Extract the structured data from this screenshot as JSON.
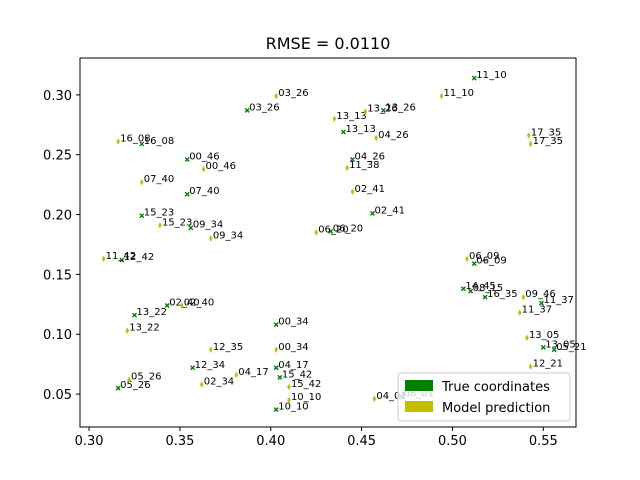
{
  "chart_data": {
    "type": "scatter",
    "title": "RMSE = 0.0110",
    "xlabel": "",
    "ylabel": "",
    "xlim": [
      0.295,
      0.568
    ],
    "ylim": [
      0.0225,
      0.3308
    ],
    "xticks": [
      0.3,
      0.35,
      0.4,
      0.45,
      0.5,
      0.55
    ],
    "xtick_labels": [
      "0.30",
      "0.35",
      "0.40",
      "0.45",
      "0.50",
      "0.55"
    ],
    "yticks": [
      0.05,
      0.1,
      0.15,
      0.2,
      0.25,
      0.3
    ],
    "ytick_labels": [
      "0.05",
      "0.10",
      "0.15",
      "0.20",
      "0.25",
      "0.30"
    ],
    "grid": false,
    "legend_position": "bottom-right",
    "series": [
      {
        "name": "True coordinates",
        "color": "#008000",
        "marker": "x",
        "points": [
          {
            "label": "11_10",
            "x": 0.512,
            "y": 0.314
          },
          {
            "label": "03_26",
            "x": 0.387,
            "y": 0.287
          },
          {
            "label": "13_26",
            "x": 0.462,
            "y": 0.287
          },
          {
            "label": "13_13",
            "x": 0.44,
            "y": 0.269
          },
          {
            "label": "16_08",
            "x": 0.329,
            "y": 0.259
          },
          {
            "label": "00_46",
            "x": 0.354,
            "y": 0.246
          },
          {
            "label": "04_26",
            "x": 0.445,
            "y": 0.246
          },
          {
            "label": "07_40",
            "x": 0.354,
            "y": 0.217
          },
          {
            "label": "02_41",
            "x": 0.456,
            "y": 0.201
          },
          {
            "label": "15_23",
            "x": 0.329,
            "y": 0.199
          },
          {
            "label": "09_34",
            "x": 0.356,
            "y": 0.189
          },
          {
            "label": "06_20",
            "x": 0.433,
            "y": 0.186
          },
          {
            "label": "12_42",
            "x": 0.318,
            "y": 0.162
          },
          {
            "label": "06_09",
            "x": 0.512,
            "y": 0.159
          },
          {
            "label": "16_35",
            "x": 0.518,
            "y": 0.131
          },
          {
            "label": "11_37",
            "x": 0.549,
            "y": 0.126
          },
          {
            "label": "02_40",
            "x": 0.343,
            "y": 0.124
          },
          {
            "label": "13_22",
            "x": 0.325,
            "y": 0.116
          },
          {
            "label": "00_34",
            "x": 0.403,
            "y": 0.108
          },
          {
            "label": "13_05",
            "x": 0.55,
            "y": 0.089
          },
          {
            "label": "05_21",
            "x": 0.556,
            "y": 0.087
          },
          {
            "label": "12_34",
            "x": 0.357,
            "y": 0.072
          },
          {
            "label": "04_17",
            "x": 0.403,
            "y": 0.072
          },
          {
            "label": "15_42",
            "x": 0.405,
            "y": 0.064
          },
          {
            "label": "05_26",
            "x": 0.316,
            "y": 0.055
          },
          {
            "label": "08_01",
            "x": 0.472,
            "y": 0.048
          },
          {
            "label": "10_10",
            "x": 0.403,
            "y": 0.037
          },
          {
            "label": "14_45",
            "x": 0.506,
            "y": 0.138
          },
          {
            "label": "08_15",
            "x": 0.51,
            "y": 0.136
          }
        ]
      },
      {
        "name": "Model prediction",
        "color": "#bfbf00",
        "marker": "diamond",
        "points": [
          {
            "label": "11_10",
            "x": 0.494,
            "y": 0.299
          },
          {
            "label": "03_26",
            "x": 0.403,
            "y": 0.299
          },
          {
            "label": "13_13",
            "x": 0.435,
            "y": 0.28
          },
          {
            "label": "13_26",
            "x": 0.452,
            "y": 0.286
          },
          {
            "label": "04_26",
            "x": 0.458,
            "y": 0.264
          },
          {
            "label": "17_35",
            "x": 0.542,
            "y": 0.266
          },
          {
            "label": "17_35",
            "x": 0.543,
            "y": 0.259
          },
          {
            "label": "16_08",
            "x": 0.316,
            "y": 0.261
          },
          {
            "label": "00_46",
            "x": 0.363,
            "y": 0.238
          },
          {
            "label": "11_38",
            "x": 0.442,
            "y": 0.239
          },
          {
            "label": "07_40",
            "x": 0.329,
            "y": 0.227
          },
          {
            "label": "02_41",
            "x": 0.445,
            "y": 0.219
          },
          {
            "label": "15_23",
            "x": 0.339,
            "y": 0.191
          },
          {
            "label": "09_34",
            "x": 0.367,
            "y": 0.18
          },
          {
            "label": "06_20",
            "x": 0.425,
            "y": 0.185
          },
          {
            "label": "11_42",
            "x": 0.308,
            "y": 0.163
          },
          {
            "label": "06_09",
            "x": 0.508,
            "y": 0.163
          },
          {
            "label": "09_46",
            "x": 0.539,
            "y": 0.131
          },
          {
            "label": "11_37",
            "x": 0.537,
            "y": 0.118
          },
          {
            "label": "02_40",
            "x": 0.351,
            "y": 0.124
          },
          {
            "label": "13_22",
            "x": 0.321,
            "y": 0.103
          },
          {
            "label": "13_05",
            "x": 0.541,
            "y": 0.097
          },
          {
            "label": "12_21",
            "x": 0.543,
            "y": 0.073
          },
          {
            "label": "12_35",
            "x": 0.367,
            "y": 0.087
          },
          {
            "label": "00_34",
            "x": 0.403,
            "y": 0.087
          },
          {
            "label": "04_17",
            "x": 0.381,
            "y": 0.066
          },
          {
            "label": "15_42",
            "x": 0.41,
            "y": 0.056
          },
          {
            "label": "02_34",
            "x": 0.362,
            "y": 0.058
          },
          {
            "label": "05_26",
            "x": 0.322,
            "y": 0.062
          },
          {
            "label": "10_10",
            "x": 0.41,
            "y": 0.045
          },
          {
            "label": "04_01",
            "x": 0.457,
            "y": 0.046
          }
        ]
      }
    ]
  }
}
